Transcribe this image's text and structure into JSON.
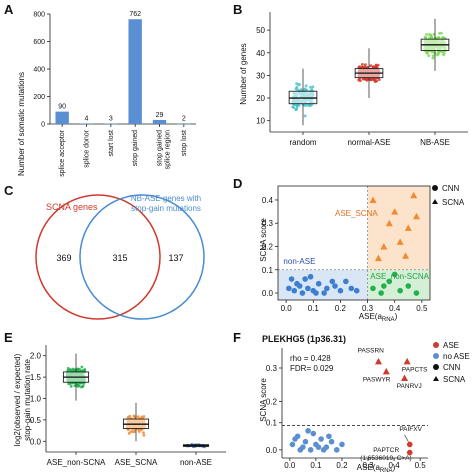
{
  "colors": {
    "blue": "#5b8fd4",
    "red": "#d03a2c",
    "teal": "#4ec3cf",
    "green": "#7ed957",
    "orange": "#f28a30",
    "darkgreen": "#22b14c",
    "bluepoint": "#3d7fcf"
  },
  "panel_labels": [
    "A",
    "B",
    "C",
    "D",
    "E",
    "F"
  ],
  "chart_data": [
    {
      "panel": "A",
      "type": "bar",
      "ylabel": "Number of somatic mutations",
      "categories": [
        "splice acceptor",
        "splice donor",
        "start lost",
        "stop gained",
        "stop gained splice region",
        "stop lost"
      ],
      "values": [
        90,
        4,
        3,
        762,
        29,
        2
      ],
      "value_labels": [
        "90",
        "4",
        "3",
        "762",
        "29",
        "2"
      ],
      "yticks": [
        "0",
        "200",
        "400",
        "600",
        "800"
      ],
      "ylim": [
        0,
        800
      ]
    },
    {
      "panel": "B",
      "type": "box",
      "ylabel": "Number of genes",
      "categories": [
        "random",
        "normal-ASE",
        "NB-ASE"
      ],
      "yticks": [
        "10",
        "20",
        "30",
        "40",
        "50"
      ],
      "ylim": [
        5,
        58
      ],
      "medians": [
        20,
        31,
        43.5
      ],
      "q1": [
        17.5,
        29,
        41
      ],
      "q3": [
        23,
        33,
        46
      ],
      "min": [
        8,
        20,
        32
      ],
      "max": [
        33,
        42,
        55
      ]
    },
    {
      "panel": "C",
      "type": "venn",
      "sets": [
        "SCNA genes",
        "NB-ASE genes with stop-gain mutations"
      ],
      "only_a": "369",
      "both": "315",
      "only_b": "137"
    },
    {
      "panel": "D",
      "type": "scatter",
      "xlabel_main": "ASE(a",
      "xlabel_sub": "RNA",
      "xlabel_end": ")",
      "ylabel": "SCNA score",
      "xticks": [
        "0.0",
        "0.1",
        "0.2",
        "0.3",
        "0.4",
        "0.5"
      ],
      "yticks": [
        "0.0",
        "0.1",
        "0.2",
        "0.3",
        "0.4"
      ],
      "xlim": [
        -0.03,
        0.53
      ],
      "ylim": [
        -0.03,
        0.46
      ],
      "region_labels": [
        "ASE_SCNA",
        "non-ASE",
        "ASE_non-SCNA"
      ],
      "legend": [
        "CNN",
        "SCNA"
      ],
      "series": [
        {
          "name": "non-ASE",
          "marker": "circle",
          "points": [
            [
              0.01,
              0.02
            ],
            [
              0.03,
              0.01
            ],
            [
              0.05,
              0.03
            ],
            [
              0.06,
              0.0
            ],
            [
              0.08,
              0.02
            ],
            [
              0.1,
              0.01
            ],
            [
              0.12,
              0.04
            ],
            [
              0.15,
              0.02
            ],
            [
              0.18,
              0.03
            ],
            [
              0.2,
              0.01
            ],
            [
              0.22,
              0.05
            ],
            [
              0.24,
              0.02
            ],
            [
              0.02,
              0.06
            ],
            [
              0.09,
              0.07
            ],
            [
              0.14,
              0.0
            ],
            [
              0.17,
              0.05
            ],
            [
              0.26,
              0.01
            ],
            [
              0.11,
              0.0
            ],
            [
              0.04,
              0.04
            ],
            [
              0.07,
              0.06
            ]
          ]
        },
        {
          "name": "ASE_non-SCNA",
          "marker": "circle",
          "points": [
            [
              0.32,
              0.02
            ],
            [
              0.35,
              0.0
            ],
            [
              0.38,
              0.05
            ],
            [
              0.42,
              0.01
            ],
            [
              0.45,
              0.03
            ],
            [
              0.48,
              0.0
            ],
            [
              0.4,
              0.08
            ],
            [
              0.36,
              0.03
            ]
          ]
        },
        {
          "name": "ASE_SCNA",
          "marker": "triangle",
          "points": [
            [
              0.32,
              0.4
            ],
            [
              0.36,
              0.2
            ],
            [
              0.38,
              0.3
            ],
            [
              0.4,
              0.35
            ],
            [
              0.42,
              0.22
            ],
            [
              0.45,
              0.28
            ],
            [
              0.48,
              0.33
            ],
            [
              0.34,
              0.15
            ],
            [
              0.44,
              0.16
            ],
            [
              0.47,
              0.42
            ]
          ]
        }
      ]
    },
    {
      "panel": "E",
      "type": "box",
      "ylabel": "log2(observed / expected)\nstop-gain mutation rate",
      "categories": [
        "ASE_non-SCNA",
        "ASE_SCNA",
        "non-ASE"
      ],
      "yticks": [
        "0.0",
        "0.5",
        "1.0",
        "1.5",
        "2.0"
      ],
      "ylim": [
        -0.25,
        2.25
      ],
      "medians": [
        1.5,
        0.4,
        -0.1
      ],
      "q1": [
        1.38,
        0.3,
        -0.12
      ],
      "q3": [
        1.62,
        0.52,
        -0.08
      ],
      "min": [
        0.95,
        0.0,
        -0.15
      ],
      "max": [
        2.05,
        0.9,
        -0.05
      ]
    },
    {
      "panel": "F",
      "type": "scatter",
      "title": "PLEKHG5 (1p36.31)",
      "xlabel_main": "ASE(a",
      "xlabel_sub": "RNA",
      "xlabel_end": ")",
      "ylabel": "SCNA score",
      "xticks": [
        "0.0",
        "0.1",
        "0.2",
        "0.3",
        "0.4",
        "0.5"
      ],
      "yticks_low": [
        "0.0",
        "0.1"
      ],
      "yticks_high": [
        "0.2",
        "0.3"
      ],
      "stats": [
        "rho = 0.428",
        "FDR= 0.029"
      ],
      "legend": [
        "ASE",
        "no ASE",
        "CNN",
        "SCNA"
      ],
      "annotations": [
        "PASSRN",
        "PAPCTS",
        "PASWYR",
        "PANRVJ",
        "PAIFXV",
        "PAPTCR",
        "(1:6536019, C>A)"
      ],
      "series": [
        {
          "name": "no ASE",
          "marker": "circle",
          "points": [
            [
              0.01,
              0.02
            ],
            [
              0.03,
              0.05
            ],
            [
              0.05,
              0.01
            ],
            [
              0.06,
              0.03
            ],
            [
              0.08,
              0.0
            ],
            [
              0.1,
              0.02
            ],
            [
              0.12,
              0.04
            ],
            [
              0.14,
              0.01
            ],
            [
              0.16,
              0.03
            ],
            [
              0.18,
              0.0
            ],
            [
              0.2,
              0.02
            ],
            [
              0.04,
              0.0
            ],
            [
              0.09,
              0.06
            ],
            [
              0.02,
              0.04
            ],
            [
              0.13,
              0.0
            ],
            [
              0.07,
              0.07
            ],
            [
              0.11,
              0.01
            ],
            [
              0.15,
              0.05
            ]
          ]
        },
        {
          "name": "ASE",
          "marker": "triangle",
          "points": [
            [
              0.34,
              0.32
            ],
            [
              0.45,
              0.32
            ],
            [
              0.37,
              0.29
            ],
            [
              0.44,
              0.27
            ]
          ]
        },
        {
          "name": "ASE",
          "marker": "circle",
          "points": [
            [
              0.46,
              0.02
            ],
            [
              0.46,
              -0.01
            ]
          ]
        }
      ]
    }
  ]
}
